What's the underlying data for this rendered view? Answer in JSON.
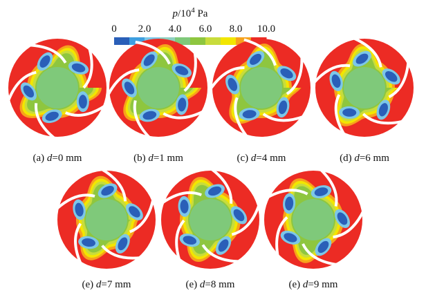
{
  "colorbar": {
    "title": {
      "var": "p",
      "base": "/10",
      "exp": "4",
      "unit": " Pa"
    },
    "lim": [
      0,
      10
    ],
    "ticks": [
      {
        "value": 0,
        "label": "0"
      },
      {
        "value": 2,
        "label": "2.0"
      },
      {
        "value": 4,
        "label": "4.0"
      },
      {
        "value": 6,
        "label": "6.0"
      },
      {
        "value": 8,
        "label": "8.0"
      },
      {
        "value": 10,
        "label": "10.0"
      }
    ],
    "colors": [
      "#2a5fb8",
      "#3f9fe0",
      "#7cc7e8",
      "#8fd0c0",
      "#7fc97a",
      "#8ec63f",
      "#c8dc3c",
      "#f2e600",
      "#f7a21c",
      "#ec2b24"
    ]
  },
  "panels": [
    {
      "caption": [
        "(a) ",
        "d",
        "=0 mm"
      ]
    },
    {
      "caption": [
        "(b) ",
        "d",
        "=1 mm"
      ]
    },
    {
      "caption": [
        "(c) ",
        "d",
        "=4 mm"
      ]
    },
    {
      "caption": [
        "(d) ",
        "d",
        "=6 mm"
      ]
    },
    {
      "caption": [
        "(e) ",
        "d",
        "=7 mm"
      ]
    },
    {
      "caption": [
        "(e) ",
        "d",
        "=8 mm"
      ]
    },
    {
      "caption": [
        "(e) ",
        "d",
        "=9 mm"
      ]
    }
  ]
}
